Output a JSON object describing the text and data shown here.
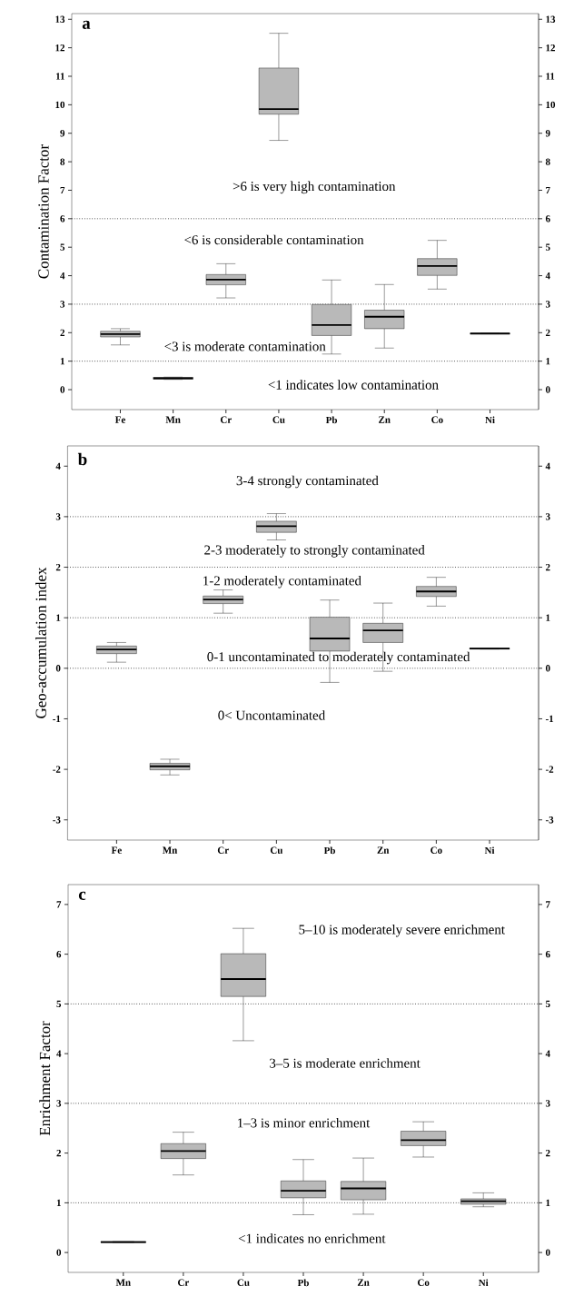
{
  "chart_data": [
    {
      "type": "box",
      "title": "a",
      "ylabel": "Contamination Factor",
      "categories": [
        "Fe",
        "Mn",
        "Cr",
        "Cu",
        "Pb",
        "Zn",
        "Co",
        "Ni"
      ],
      "boxes": [
        {
          "low": 1.57,
          "q1": 1.85,
          "median": 1.95,
          "q3": 2.05,
          "high": 2.14
        },
        {
          "low": 0.36,
          "q1": 0.37,
          "median": 0.4,
          "q3": 0.43,
          "high": 0.44
        },
        {
          "low": 3.22,
          "q1": 3.68,
          "median": 3.86,
          "q3": 4.04,
          "high": 4.42
        },
        {
          "low": 8.75,
          "q1": 9.67,
          "median": 9.85,
          "q3": 11.29,
          "high": 12.51
        },
        {
          "low": 1.25,
          "q1": 1.9,
          "median": 2.27,
          "q3": 2.99,
          "high": 3.85
        },
        {
          "low": 1.46,
          "q1": 2.14,
          "median": 2.56,
          "q3": 2.79,
          "high": 3.69
        },
        {
          "low": 3.53,
          "q1": 4.01,
          "median": 4.34,
          "q3": 4.6,
          "high": 5.24
        },
        {
          "low": 1.96,
          "q1": 1.96,
          "median": 1.97,
          "q3": 1.98,
          "high": 1.98
        }
      ],
      "ylim": [
        -0.7,
        13.2
      ],
      "yticks": [
        0,
        1,
        2,
        3,
        4,
        5,
        6,
        7,
        8,
        9,
        10,
        11,
        12,
        13
      ],
      "y2lim": [
        -0.7,
        13.2
      ],
      "y2ticks": [
        0,
        1,
        2,
        3,
        4,
        5,
        6,
        7,
        8,
        9,
        10,
        11,
        12,
        13
      ],
      "ref_lines": [
        {
          "axis": "y",
          "value": 6,
          "line_style": "dotted"
        },
        {
          "axis": "y",
          "value": 3,
          "line_style": "dotted"
        },
        {
          "axis": "y",
          "value": 1,
          "line_style": "dotted"
        }
      ],
      "annotations": [
        ">6 is very high contamination",
        "<6 is considerable contamination",
        "<3 is moderate contamination",
        "<1 indicates low contamination"
      ]
    },
    {
      "type": "box",
      "title": "b",
      "ylabel": "Geo-accumulation index",
      "categories": [
        "Fe",
        "Mn",
        "Cr",
        "Cu",
        "Pb",
        "Zn",
        "Co",
        "Ni"
      ],
      "boxes": [
        {
          "low": 0.12,
          "q1": 0.29,
          "median": 0.37,
          "q3": 0.44,
          "high": 0.51
        },
        {
          "low": -2.11,
          "q1": -2.01,
          "median": -1.94,
          "q3": -1.88,
          "high": -1.8
        },
        {
          "low": 1.09,
          "q1": 1.28,
          "median": 1.36,
          "q3": 1.43,
          "high": 1.55
        },
        {
          "low": 2.54,
          "q1": 2.69,
          "median": 2.81,
          "q3": 2.91,
          "high": 3.06
        },
        {
          "low": -0.28,
          "q1": 0.34,
          "median": 0.59,
          "q3": 1.01,
          "high": 1.35
        },
        {
          "low": -0.06,
          "q1": 0.51,
          "median": 0.75,
          "q3": 0.89,
          "high": 1.29
        },
        {
          "low": 1.23,
          "q1": 1.42,
          "median": 1.52,
          "q3": 1.62,
          "high": 1.8
        },
        {
          "low": 0.38,
          "q1": 0.38,
          "median": 0.39,
          "q3": 0.4,
          "high": 0.4
        }
      ],
      "ylim": [
        -3.4,
        4.4
      ],
      "yticks": [
        -3,
        -2,
        -1,
        0,
        1,
        2,
        3,
        4
      ],
      "y2lim": [
        -3.4,
        4.4
      ],
      "y2ticks": [
        -3,
        -2,
        -1,
        0,
        1,
        2,
        3,
        4
      ],
      "ref_lines": [
        {
          "axis": "y",
          "value": 3,
          "line_style": "dotted"
        },
        {
          "axis": "y",
          "value": 2,
          "line_style": "dotted"
        },
        {
          "axis": "y",
          "value": 1,
          "line_style": "dotted"
        },
        {
          "axis": "y",
          "value": 0,
          "line_style": "dotted"
        }
      ],
      "annotations": [
        "3-4 strongly contaminated",
        "2-3 moderately to strongly contaminated",
        "1-2 moderately contaminated",
        "0-1 uncontaminated to moderately contaminated",
        "0< Uncontaminated"
      ]
    },
    {
      "type": "box",
      "title": "c",
      "ylabel": "Enrichment  Factor",
      "categories": [
        "Mn",
        "Cr",
        "Cu",
        "Pb",
        "Zn",
        "Co",
        "Ni"
      ],
      "boxes": [
        {
          "low": 0.2,
          "q1": 0.2,
          "median": 0.21,
          "q3": 0.22,
          "high": 0.22
        },
        {
          "low": 1.56,
          "q1": 1.89,
          "median": 2.04,
          "q3": 2.19,
          "high": 2.42
        },
        {
          "low": 4.26,
          "q1": 5.15,
          "median": 5.5,
          "q3": 6.01,
          "high": 6.52
        },
        {
          "low": 0.76,
          "q1": 1.1,
          "median": 1.24,
          "q3": 1.44,
          "high": 1.87
        },
        {
          "low": 0.77,
          "q1": 1.06,
          "median": 1.29,
          "q3": 1.43,
          "high": 1.9
        },
        {
          "low": 1.92,
          "q1": 2.15,
          "median": 2.26,
          "q3": 2.44,
          "high": 2.63
        },
        {
          "low": 0.92,
          "q1": 0.97,
          "median": 1.03,
          "q3": 1.08,
          "high": 1.2
        }
      ],
      "ylim": [
        -0.4,
        7.4
      ],
      "yticks": [
        0,
        1,
        2,
        3,
        4,
        5,
        6,
        7
      ],
      "y2lim": [
        -0.4,
        7.4
      ],
      "y2ticks": [
        0,
        1,
        2,
        3,
        4,
        5,
        6,
        7
      ],
      "ref_lines": [
        {
          "axis": "y",
          "value": 5,
          "line_style": "dotted"
        },
        {
          "axis": "y",
          "value": 3,
          "line_style": "dotted"
        },
        {
          "axis": "y",
          "value": 1,
          "line_style": "dotted"
        }
      ],
      "annotations": [
        "5–10 is moderately severe enrichment",
        "3–5 is moderate enrichment",
        "1–3 is minor enrichment",
        "<1 indicates no enrichment"
      ]
    }
  ]
}
